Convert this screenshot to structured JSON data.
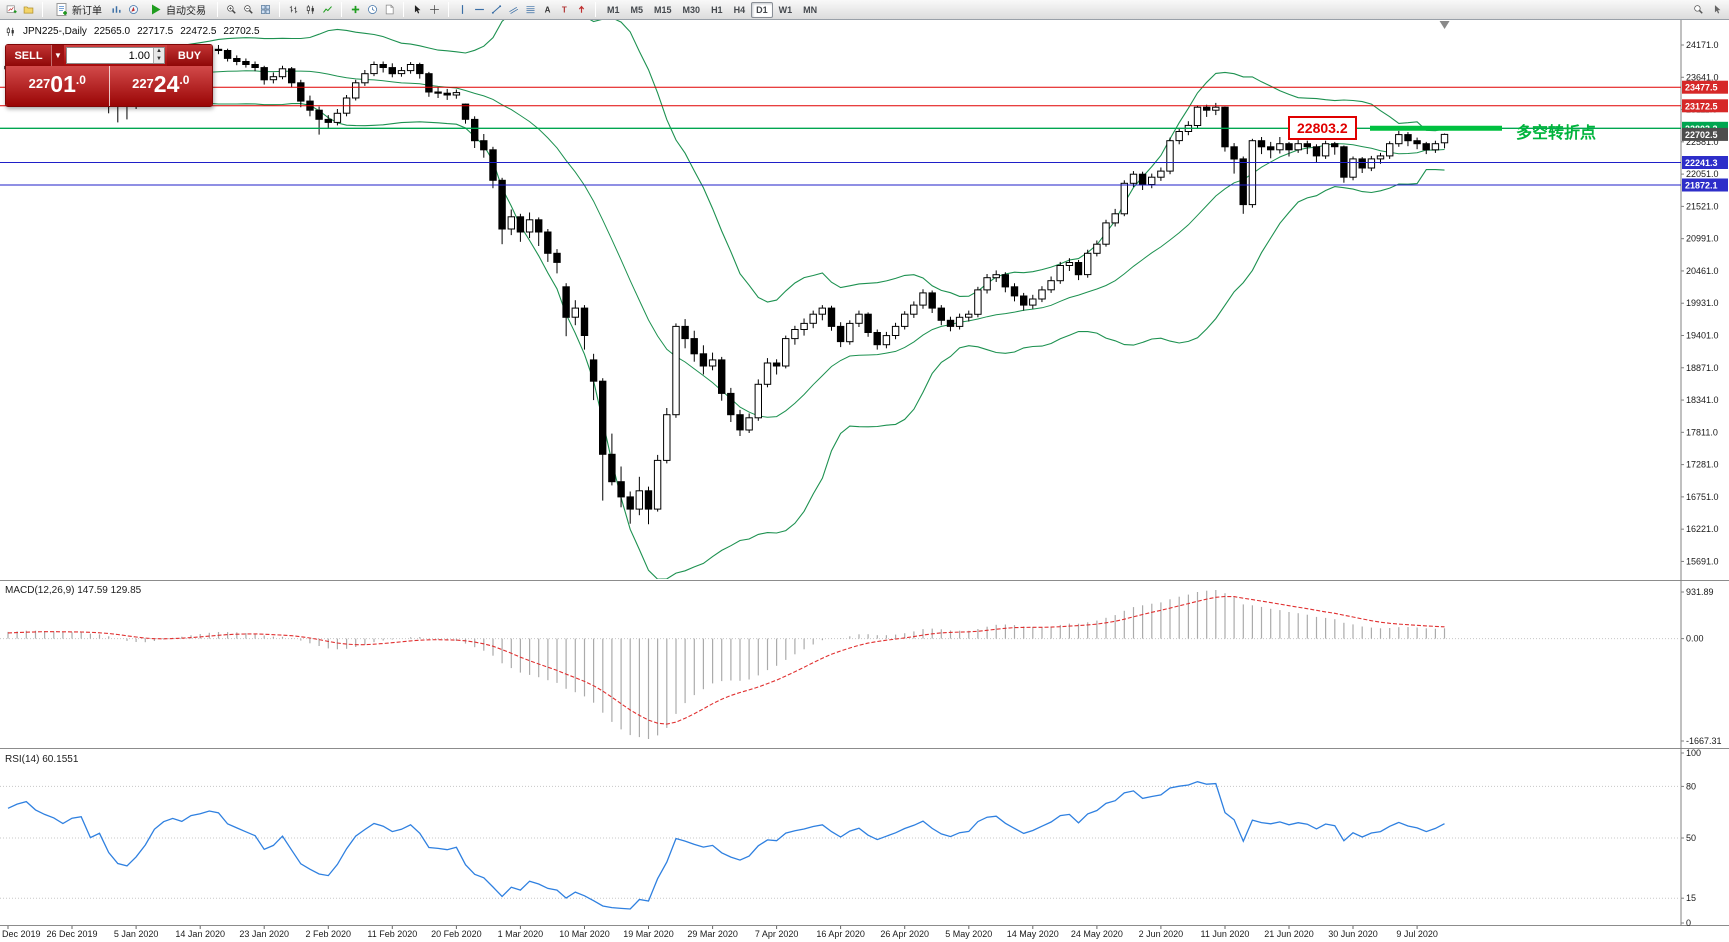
{
  "toolbar": {
    "new_order_label": "新订单",
    "autotrade_label": "自动交易",
    "timeframes": [
      "M1",
      "M5",
      "M15",
      "M30",
      "H1",
      "H4",
      "D1",
      "W1",
      "MN"
    ],
    "active_timeframe": "D1"
  },
  "chart_header": {
    "symbol_period": "JPN225-,Daily",
    "open": "22565.0",
    "high": "22717.5",
    "low": "22472.5",
    "close": "22702.5"
  },
  "trade_panel": {
    "sell_label": "SELL",
    "buy_label": "BUY",
    "volume": "1.00",
    "sell_price": "22701.0",
    "buy_price": "22724.0"
  },
  "annotations": {
    "price": 22803.2,
    "price_box_label": "22803.2",
    "turning_point_text": "多空转折点",
    "accent_green": "#00c040",
    "accent_red": "#e00000"
  },
  "hlines": [
    {
      "price": 23477.5,
      "color": "#e00000"
    },
    {
      "price": 23172.5,
      "color": "#e00000"
    },
    {
      "price": 22803.2,
      "color": "#00a650"
    },
    {
      "price": 22241.3,
      "color": "#1f1fc8"
    },
    {
      "price": 21872.1,
      "color": "#1f1fc8"
    }
  ],
  "price_axis": {
    "gridline_labels": [
      "24171.0",
      "23641.0",
      "23111.0",
      "22581.0",
      "22051.0",
      "21521.0",
      "20991.0",
      "20461.0",
      "19931.0",
      "19401.0",
      "18871.0",
      "18341.0",
      "17811.0",
      "17281.0",
      "16751.0",
      "16221.0",
      "15691.0"
    ],
    "badges": [
      {
        "text": "23477.5",
        "bg": "#d62828"
      },
      {
        "text": "23172.5",
        "bg": "#d62828"
      },
      {
        "text": "22803.2",
        "bg": "#00a650"
      },
      {
        "text": "22702.5",
        "bg": "#4d4d4d"
      },
      {
        "text": "22241.3",
        "bg": "#2e2ec9"
      },
      {
        "text": "21872.1",
        "bg": "#2e2ec9"
      }
    ]
  },
  "macd": {
    "label": "MACD(12,26,9) 147.59 129.85",
    "axis_labels": [
      "931.89",
      "0.00",
      "-1667.31"
    ]
  },
  "rsi": {
    "label": "RSI(14) 60.1551",
    "axis_labels": [
      "100",
      "80",
      "50",
      "15",
      "0"
    ],
    "levels": [
      80,
      50,
      15
    ]
  },
  "chart_data": {
    "type": "candlestick",
    "symbol": "JPN225-",
    "period": "Daily",
    "overlays": [
      {
        "name": "Bollinger Bands",
        "period": 20,
        "deviation": 2
      }
    ],
    "indicators": [
      {
        "name": "MACD",
        "params": "12,26,9",
        "current": "147.59 129.85",
        "scale": [
          "931.89",
          "0.00",
          "-1667.31"
        ]
      },
      {
        "name": "RSI",
        "params": "14",
        "current": "60.1551",
        "scale": [
          "100",
          "80",
          "50",
          "15",
          "0"
        ]
      }
    ],
    "date_ticks": {
      "candles_per_tick": 7,
      "labels": [
        "Dec 2019",
        "26 Dec 2019",
        "5 Jan 2020",
        "14 Jan 2020",
        "23 Jan 2020",
        "2 Feb 2020",
        "11 Feb 2020",
        "20 Feb 2020",
        "1 Mar 2020",
        "10 Mar 2020",
        "19 Mar 2020",
        "29 Mar 2020",
        "7 Apr 2020",
        "16 Apr 2020",
        "26 Apr 2020",
        "5 May 2020",
        "14 May 2020",
        "24 May 2020",
        "2 Jun 2020",
        "11 Jun 2020",
        "21 Jun 2020",
        "30 Jun 2020",
        "9 Jul 2020"
      ]
    },
    "ohlc": [
      [
        23780,
        23900,
        23730,
        23820
      ],
      [
        23820,
        23960,
        23790,
        23900
      ],
      [
        23900,
        23990,
        23850,
        23950
      ],
      [
        23950,
        23980,
        23840,
        23880
      ],
      [
        23880,
        23930,
        23790,
        23840
      ],
      [
        23840,
        23890,
        23760,
        23810
      ],
      [
        23810,
        23860,
        23700,
        23760
      ],
      [
        23760,
        23870,
        23720,
        23830
      ],
      [
        23830,
        23900,
        23780,
        23850
      ],
      [
        23850,
        23880,
        23600,
        23650
      ],
      [
        23650,
        23760,
        23610,
        23700
      ],
      [
        23700,
        23740,
        23050,
        23450
      ],
      [
        23450,
        23500,
        22900,
        23250
      ],
      [
        23250,
        23330,
        22950,
        23200
      ],
      [
        23200,
        23380,
        23120,
        23300
      ],
      [
        23300,
        23520,
        23260,
        23450
      ],
      [
        23450,
        23760,
        23420,
        23700
      ],
      [
        23700,
        23900,
        23660,
        23850
      ],
      [
        23850,
        23980,
        23800,
        23920
      ],
      [
        23920,
        23960,
        23820,
        23880
      ],
      [
        23880,
        24050,
        23850,
        24000
      ],
      [
        24000,
        24090,
        23950,
        24040
      ],
      [
        24040,
        24115,
        23990,
        24100
      ],
      [
        24100,
        24171,
        24020,
        24080
      ],
      [
        24080,
        24110,
        23900,
        23950
      ],
      [
        23950,
        24000,
        23840,
        23900
      ],
      [
        23900,
        23950,
        23800,
        23850
      ],
      [
        23850,
        23900,
        23740,
        23800
      ],
      [
        23800,
        23830,
        23520,
        23600
      ],
      [
        23600,
        23720,
        23540,
        23650
      ],
      [
        23650,
        23830,
        23610,
        23780
      ],
      [
        23780,
        23810,
        23480,
        23550
      ],
      [
        23550,
        23600,
        23150,
        23250
      ],
      [
        23250,
        23340,
        23000,
        23100
      ],
      [
        23100,
        23160,
        22700,
        22950
      ],
      [
        22950,
        23020,
        22800,
        22900
      ],
      [
        22900,
        23120,
        22850,
        23050
      ],
      [
        23050,
        23350,
        23000,
        23300
      ],
      [
        23300,
        23600,
        23260,
        23550
      ],
      [
        23550,
        23760,
        23500,
        23700
      ],
      [
        23700,
        23900,
        23660,
        23850
      ],
      [
        23850,
        23900,
        23720,
        23800
      ],
      [
        23800,
        23870,
        23640,
        23700
      ],
      [
        23700,
        23810,
        23650,
        23750
      ],
      [
        23750,
        23890,
        23700,
        23850
      ],
      [
        23850,
        23880,
        23620,
        23700
      ],
      [
        23700,
        23730,
        23320,
        23400
      ],
      [
        23400,
        23480,
        23300,
        23380
      ],
      [
        23380,
        23450,
        23270,
        23350
      ],
      [
        23350,
        23440,
        23290,
        23390
      ],
      [
        23200,
        23210,
        22880,
        22950
      ],
      [
        22950,
        23000,
        22480,
        22600
      ],
      [
        22600,
        22710,
        22320,
        22450
      ],
      [
        22450,
        22500,
        21820,
        21950
      ],
      [
        21950,
        21990,
        20900,
        21150
      ],
      [
        21150,
        21470,
        21050,
        21350
      ],
      [
        21350,
        21400,
        20940,
        21100
      ],
      [
        21100,
        21420,
        21000,
        21300
      ],
      [
        21300,
        21340,
        20870,
        21100
      ],
      [
        21100,
        21150,
        20610,
        20750
      ],
      [
        20750,
        20820,
        20420,
        20600
      ],
      [
        20200,
        20260,
        19390,
        19700
      ],
      [
        19700,
        19980,
        19570,
        19850
      ],
      [
        19850,
        19900,
        19170,
        19400
      ],
      [
        19000,
        19100,
        18340,
        18650
      ],
      [
        18650,
        18700,
        16690,
        17450
      ],
      [
        17450,
        17790,
        16940,
        17000
      ],
      [
        17000,
        17250,
        16580,
        16750
      ],
      [
        16750,
        16840,
        16310,
        16550
      ],
      [
        16550,
        17080,
        16450,
        16850
      ],
      [
        16850,
        16920,
        16300,
        16550
      ],
      [
        16550,
        17440,
        16510,
        17350
      ],
      [
        17350,
        18210,
        17300,
        18100
      ],
      [
        18100,
        19600,
        18050,
        19550
      ],
      [
        19550,
        19670,
        19190,
        19350
      ],
      [
        19350,
        19480,
        18970,
        19100
      ],
      [
        19100,
        19240,
        18760,
        18900
      ],
      [
        18900,
        19120,
        18830,
        19000
      ],
      [
        19000,
        19050,
        18330,
        18450
      ],
      [
        18450,
        18540,
        17980,
        18100
      ],
      [
        18100,
        18180,
        17750,
        17850
      ],
      [
        17850,
        18120,
        17800,
        18050
      ],
      [
        18050,
        18680,
        18000,
        18600
      ],
      [
        18600,
        19030,
        18550,
        18950
      ],
      [
        18950,
        19010,
        18760,
        18900
      ],
      [
        18900,
        19400,
        18860,
        19350
      ],
      [
        19350,
        19560,
        19250,
        19500
      ],
      [
        19500,
        19680,
        19400,
        19600
      ],
      [
        19600,
        19810,
        19520,
        19750
      ],
      [
        19750,
        19900,
        19650,
        19850
      ],
      [
        19850,
        19890,
        19480,
        19550
      ],
      [
        19550,
        19620,
        19210,
        19300
      ],
      [
        19300,
        19650,
        19250,
        19600
      ],
      [
        19600,
        19810,
        19540,
        19750
      ],
      [
        19750,
        19780,
        19380,
        19450
      ],
      [
        19450,
        19500,
        19170,
        19250
      ],
      [
        19250,
        19460,
        19190,
        19400
      ],
      [
        19400,
        19610,
        19340,
        19550
      ],
      [
        19550,
        19800,
        19500,
        19750
      ],
      [
        19750,
        19960,
        19690,
        19900
      ],
      [
        19900,
        20160,
        19840,
        20100
      ],
      [
        20100,
        20140,
        19770,
        19850
      ],
      [
        19850,
        19900,
        19570,
        19650
      ],
      [
        19650,
        19710,
        19470,
        19550
      ],
      [
        19550,
        19760,
        19500,
        19700
      ],
      [
        19700,
        19810,
        19630,
        19750
      ],
      [
        19750,
        20200,
        19700,
        20150
      ],
      [
        20150,
        20410,
        20090,
        20350
      ],
      [
        20350,
        20470,
        20280,
        20400
      ],
      [
        20400,
        20440,
        20110,
        20200
      ],
      [
        20200,
        20260,
        19960,
        20050
      ],
      [
        20050,
        20100,
        19810,
        19900
      ],
      [
        19900,
        20070,
        19840,
        20000
      ],
      [
        20000,
        20210,
        19950,
        20150
      ],
      [
        20150,
        20370,
        20100,
        20300
      ],
      [
        20300,
        20610,
        20250,
        20550
      ],
      [
        20550,
        20670,
        20460,
        20600
      ],
      [
        20600,
        20640,
        20310,
        20400
      ],
      [
        20400,
        20810,
        20350,
        20750
      ],
      [
        20750,
        20960,
        20700,
        20900
      ],
      [
        20900,
        21300,
        20860,
        21250
      ],
      [
        21250,
        21480,
        21190,
        21400
      ],
      [
        21400,
        21950,
        21360,
        21900
      ],
      [
        21900,
        22100,
        21840,
        22050
      ],
      [
        22050,
        22090,
        21790,
        21880
      ],
      [
        21880,
        22060,
        21820,
        22000
      ],
      [
        22000,
        22160,
        21940,
        22100
      ],
      [
        22100,
        22650,
        22050,
        22600
      ],
      [
        22600,
        22810,
        22540,
        22750
      ],
      [
        22750,
        22920,
        22690,
        22850
      ],
      [
        22850,
        23180,
        22800,
        23150
      ],
      [
        23150,
        23190,
        22990,
        23100
      ],
      [
        23100,
        23220,
        23020,
        23150
      ],
      [
        23150,
        23160,
        22420,
        22500
      ],
      [
        22500,
        22560,
        22060,
        22300
      ],
      [
        22300,
        22340,
        21400,
        21550
      ],
      [
        21550,
        22630,
        21500,
        22600
      ],
      [
        22600,
        22660,
        22380,
        22500
      ],
      [
        22500,
        22580,
        22310,
        22450
      ],
      [
        22450,
        22660,
        22390,
        22550
      ],
      [
        22550,
        22580,
        22340,
        22450
      ],
      [
        22450,
        22640,
        22400,
        22550
      ],
      [
        22550,
        22600,
        22380,
        22500
      ],
      [
        22500,
        22540,
        22250,
        22350
      ],
      [
        22350,
        22600,
        22300,
        22550
      ],
      [
        22550,
        22580,
        22370,
        22500
      ],
      [
        22500,
        22520,
        21910,
        22000
      ],
      [
        22000,
        22340,
        21950,
        22300
      ],
      [
        22300,
        22330,
        22070,
        22150
      ],
      [
        22150,
        22350,
        22100,
        22300
      ],
      [
        22300,
        22400,
        22220,
        22350
      ],
      [
        22350,
        22590,
        22300,
        22550
      ],
      [
        22550,
        22760,
        22500,
        22700
      ],
      [
        22700,
        22740,
        22510,
        22600
      ],
      [
        22600,
        22650,
        22460,
        22550
      ],
      [
        22550,
        22580,
        22380,
        22450
      ],
      [
        22450,
        22600,
        22400,
        22550
      ],
      [
        22565,
        22717.5,
        22472.5,
        22702.5
      ]
    ]
  }
}
